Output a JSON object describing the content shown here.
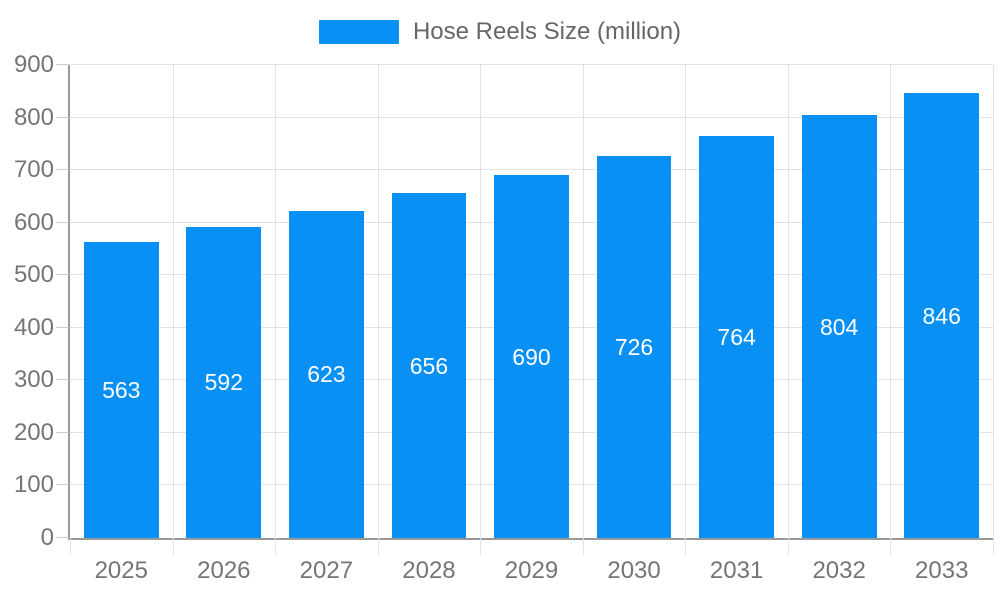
{
  "legend": {
    "label": "Hose Reels Size (million)"
  },
  "chart_data": {
    "type": "bar",
    "title": "",
    "series_name": "Hose Reels Size (million)",
    "categories": [
      "2025",
      "2026",
      "2027",
      "2028",
      "2029",
      "2030",
      "2031",
      "2032",
      "2033"
    ],
    "values": [
      563,
      592,
      623,
      656,
      690,
      726,
      764,
      804,
      846
    ],
    "xlabel": "",
    "ylabel": "",
    "ylim": [
      0,
      900
    ],
    "ytick_interval": 100,
    "yticks": [
      0,
      100,
      200,
      300,
      400,
      500,
      600,
      700,
      800,
      900
    ],
    "grid": true,
    "legend_position": "top-center",
    "value_labels": "inside-center",
    "colors": {
      "bar": "#0990f5",
      "value_label": "#ffffff",
      "axis_text": "#757575",
      "legend_text": "#666666",
      "axis_line": "#999999",
      "gridline": "#e3e3e3",
      "tick": "#cccccc"
    }
  }
}
